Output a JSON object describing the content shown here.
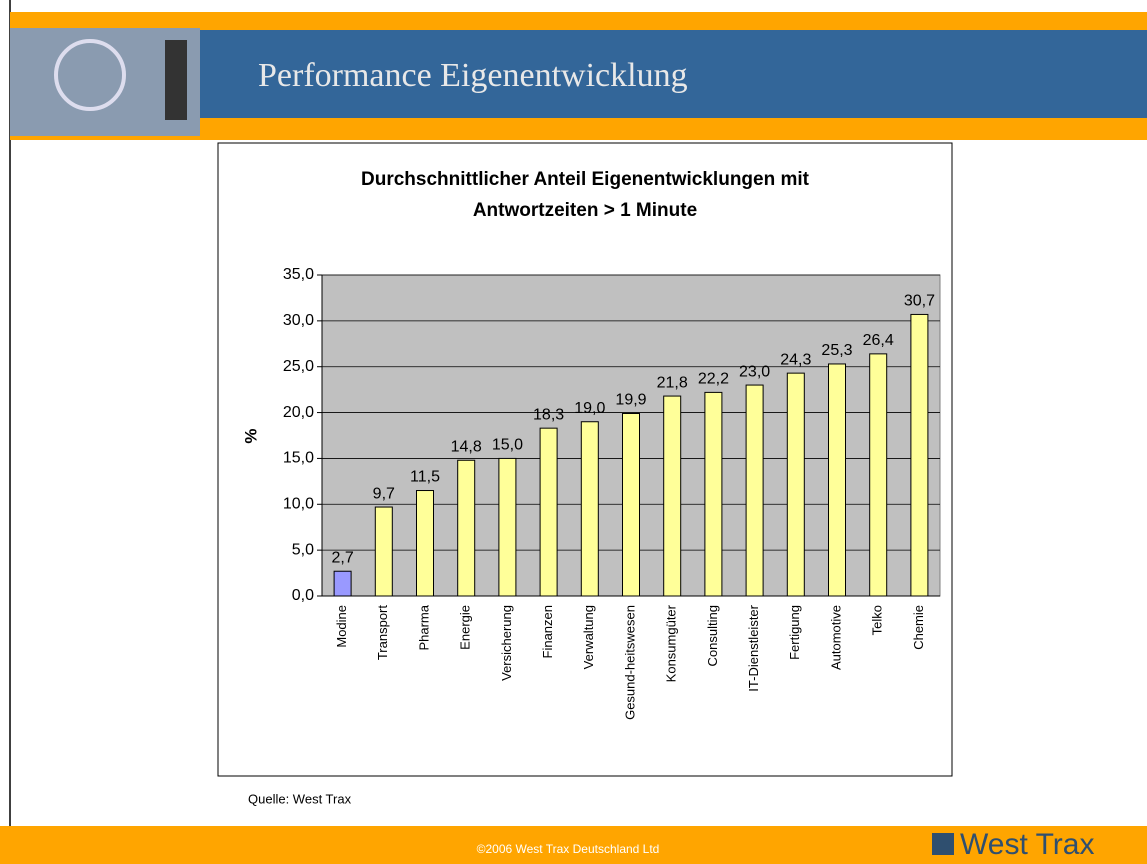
{
  "header": {
    "title": "Performance Eigenentwicklung"
  },
  "chart_data": {
    "type": "bar",
    "title": "Durchschnittlicher Anteil Eigenentwicklungen mit Antwortzeiten > 1 Minute",
    "y_label": "%",
    "categories": [
      "Modine",
      "Transport",
      "Pharma",
      "Energie",
      "Versicherung",
      "Finanzen",
      "Verwaltung",
      "Gesund-heitswesen",
      "Konsumgüter",
      "Consulting",
      "IT-Dienstleister",
      "Fertigung",
      "Automotive",
      "Telko",
      "Chemie"
    ],
    "values": [
      2.7,
      9.7,
      11.5,
      14.8,
      15.0,
      18.3,
      19.0,
      19.9,
      21.8,
      22.2,
      23.0,
      24.3,
      25.3,
      26.4,
      30.7
    ],
    "value_labels": [
      "2,7",
      "9,7",
      "11,5",
      "14,8",
      "15,0",
      "18,3",
      "19,0",
      "19,9",
      "21,8",
      "22,2",
      "23,0",
      "24,3",
      "25,3",
      "26,4",
      "30,7"
    ],
    "colors": [
      "#9999ff",
      "#ffff99",
      "#ffff99",
      "#ffff99",
      "#ffff99",
      "#ffff99",
      "#ffff99",
      "#ffff99",
      "#ffff99",
      "#ffff99",
      "#ffff99",
      "#ffff99",
      "#ffff99",
      "#ffff99",
      "#ffff99"
    ],
    "ylim": [
      0,
      35
    ],
    "yticks": [
      {
        "value": 0,
        "label": "0,0"
      },
      {
        "value": 5,
        "label": "5,0"
      },
      {
        "value": 10,
        "label": "10,0"
      },
      {
        "value": 15,
        "label": "15,0"
      },
      {
        "value": 20,
        "label": "20,0"
      },
      {
        "value": 25,
        "label": "25,0"
      },
      {
        "value": 30,
        "label": "30,0"
      },
      {
        "value": 35,
        "label": "35,0"
      }
    ],
    "grid": true
  },
  "source": "Quelle: West Trax",
  "footer": {
    "copyright": "©2006 West Trax Deutschland Ltd",
    "logo": "West Trax"
  }
}
